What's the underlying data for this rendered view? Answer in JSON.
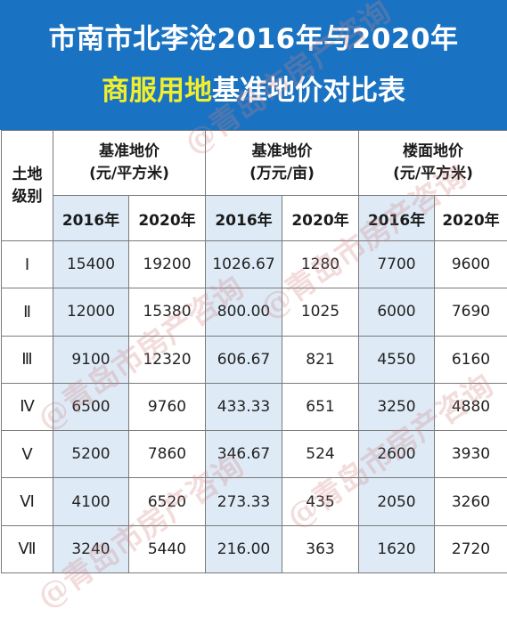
{
  "title": {
    "line1": "市南市北李沧2016年与2020年",
    "line2_highlight": "商服用地",
    "line2_rest": "基准地价对比表"
  },
  "table": {
    "grade_header": "土地级别",
    "groups": [
      {
        "label": "基准地价",
        "unit": "(元/平方米)"
      },
      {
        "label": "基准地价",
        "unit": "(万元/亩)"
      },
      {
        "label": "楼面地价",
        "unit": "(元/平方米)"
      }
    ],
    "years": [
      "2016年",
      "2020年"
    ],
    "rows": [
      {
        "grade": "Ⅰ",
        "values": [
          "15400",
          "19200",
          "1026.67",
          "1280",
          "7700",
          "9600"
        ]
      },
      {
        "grade": "Ⅱ",
        "values": [
          "12000",
          "15380",
          "800.00",
          "1025",
          "6000",
          "7690"
        ]
      },
      {
        "grade": "Ⅲ",
        "values": [
          "9100",
          "12320",
          "606.67",
          "821",
          "4550",
          "6160"
        ]
      },
      {
        "grade": "Ⅳ",
        "values": [
          "6500",
          "9760",
          "433.33",
          "651",
          "3250",
          "4880"
        ]
      },
      {
        "grade": "Ⅴ",
        "values": [
          "5200",
          "7860",
          "346.67",
          "524",
          "2600",
          "3930"
        ]
      },
      {
        "grade": "Ⅵ",
        "values": [
          "4100",
          "6520",
          "273.33",
          "435",
          "2050",
          "3260"
        ]
      },
      {
        "grade": "Ⅶ",
        "values": [
          "3240",
          "5440",
          "216.00",
          "363",
          "1620",
          "2720"
        ]
      }
    ]
  },
  "watermark": "@青岛市房产咨询",
  "colors": {
    "header_bg": "#1a73c2",
    "highlight": "#f3ee2b",
    "shade": "#deebf7"
  }
}
